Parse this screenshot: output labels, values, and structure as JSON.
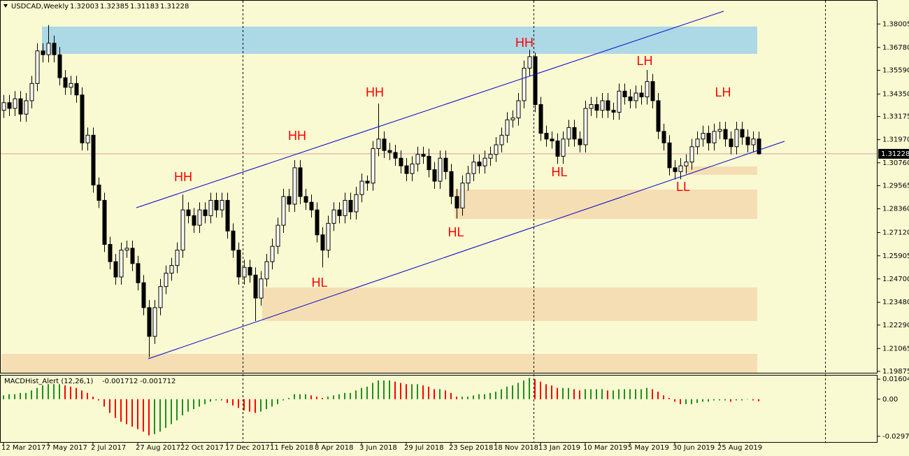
{
  "chart_data": [
    {
      "type": "candlestick",
      "title": "USDCAD,Weekly",
      "categories": [
        "12 Mar 2017",
        null,
        null,
        null,
        null,
        null,
        null,
        null,
        "7 May 2017",
        null,
        null,
        null,
        null,
        null,
        null,
        null,
        "2 Jul 2017",
        null,
        null,
        null,
        null,
        null,
        null,
        null,
        "27 Aug 2017",
        null,
        null,
        null,
        null,
        null,
        null,
        null,
        "22 Oct 2017",
        null,
        null,
        null,
        null,
        null,
        null,
        null,
        "17 Dec 2017",
        null,
        null,
        null,
        null,
        null,
        null,
        null,
        "11 Feb 2018",
        null,
        null,
        null,
        null,
        null,
        null,
        null,
        "8 Apr 2018",
        null,
        null,
        null,
        null,
        null,
        null,
        null,
        "3 Jun 2018",
        null,
        null,
        null,
        null,
        null,
        null,
        null,
        "29 Jul 2018",
        null,
        null,
        null,
        null,
        null,
        null,
        null,
        "23 Sep 2018",
        null,
        null,
        null,
        null,
        null,
        null,
        null,
        "18 Nov 2018",
        null,
        null,
        null,
        null,
        null,
        null,
        null,
        "13 Jan 2019",
        null,
        null,
        null,
        null,
        null,
        null,
        null,
        "10 Mar 2019",
        null,
        null,
        null,
        null,
        null,
        null,
        null,
        "5 May 2019",
        null,
        null,
        null,
        null,
        null,
        null,
        null,
        "30 Jun 2019",
        null,
        null,
        null,
        null,
        null,
        null,
        null,
        "25 Aug 2019",
        null,
        null,
        null,
        null,
        null,
        null,
        null
      ],
      "open": [
        1.335,
        1.339,
        1.336,
        1.341,
        1.333,
        1.34,
        1.349,
        1.366,
        1.364,
        1.37,
        1.364,
        1.352,
        1.347,
        1.349,
        1.343,
        1.318,
        1.322,
        1.296,
        1.288,
        1.265,
        1.256,
        1.248,
        1.262,
        1.263,
        1.255,
        1.245,
        1.232,
        1.217,
        1.232,
        1.243,
        1.25,
        1.254,
        1.262,
        1.283,
        1.28,
        1.275,
        1.283,
        1.28,
        1.288,
        1.283,
        1.288,
        1.272,
        1.262,
        1.248,
        1.253,
        1.249,
        1.237,
        1.247,
        1.256,
        1.264,
        1.275,
        1.29,
        1.286,
        1.305,
        1.29,
        1.287,
        1.283,
        1.27,
        1.262,
        1.276,
        1.283,
        1.28,
        1.288,
        1.282,
        1.291,
        1.298,
        1.297,
        1.315,
        1.32,
        1.314,
        1.313,
        1.31,
        1.306,
        1.302,
        1.307,
        1.312,
        1.311,
        1.304,
        1.298,
        1.31,
        1.303,
        1.29,
        1.284,
        1.297,
        1.302,
        1.308,
        1.306,
        1.31,
        1.312,
        1.317,
        1.322,
        1.33,
        1.331,
        1.34,
        1.357,
        1.363,
        1.338,
        1.323,
        1.32,
        1.319,
        1.311,
        1.32,
        1.326,
        1.32,
        1.317,
        1.336,
        1.338,
        1.335,
        1.34,
        1.335,
        1.334,
        1.345,
        1.342,
        1.34,
        1.344,
        1.342,
        1.35,
        1.34,
        1.324,
        1.318,
        1.305,
        1.303,
        1.306,
        1.308,
        1.316,
        1.32,
        1.323,
        1.318,
        1.324,
        1.325,
        1.32,
        1.316,
        1.325,
        1.321,
        1.317,
        1.32003
      ],
      "high": [
        1.343,
        1.343,
        1.345,
        1.345,
        1.344,
        1.353,
        1.37,
        1.37,
        1.3795,
        1.374,
        1.368,
        1.356,
        1.353,
        1.353,
        1.347,
        1.326,
        1.326,
        1.3,
        1.292,
        1.269,
        1.26,
        1.266,
        1.267,
        1.267,
        1.259,
        1.249,
        1.236,
        1.236,
        1.247,
        1.254,
        1.258,
        1.266,
        1.291,
        1.287,
        1.284,
        1.287,
        1.287,
        1.292,
        1.292,
        1.292,
        1.292,
        1.276,
        1.266,
        1.257,
        1.257,
        1.253,
        1.251,
        1.26,
        1.268,
        1.279,
        1.294,
        1.294,
        1.309,
        1.309,
        1.294,
        1.291,
        1.287,
        1.274,
        1.28,
        1.287,
        1.287,
        1.292,
        1.292,
        1.295,
        1.302,
        1.301,
        1.319,
        1.3385,
        1.324,
        1.318,
        1.317,
        1.314,
        1.31,
        1.311,
        1.316,
        1.316,
        1.315,
        1.308,
        1.314,
        1.314,
        1.307,
        1.294,
        1.301,
        1.306,
        1.312,
        1.312,
        1.314,
        1.316,
        1.321,
        1.326,
        1.334,
        1.335,
        1.344,
        1.361,
        1.3665,
        1.365,
        1.342,
        1.327,
        1.324,
        1.323,
        1.324,
        1.33,
        1.33,
        1.324,
        1.34,
        1.342,
        1.342,
        1.344,
        1.344,
        1.339,
        1.349,
        1.349,
        1.346,
        1.348,
        1.348,
        1.356,
        1.354,
        1.344,
        1.328,
        1.322,
        1.309,
        1.31,
        1.312,
        1.32,
        1.324,
        1.327,
        1.327,
        1.328,
        1.329,
        1.329,
        1.324,
        1.329,
        1.329,
        1.325,
        1.324,
        1.32385
      ],
      "low": [
        1.331,
        1.332,
        1.332,
        1.329,
        1.329,
        1.336,
        1.345,
        1.36,
        1.36,
        1.36,
        1.348,
        1.343,
        1.343,
        1.339,
        1.314,
        1.314,
        1.292,
        1.284,
        1.261,
        1.252,
        1.244,
        1.244,
        1.258,
        1.251,
        1.241,
        1.228,
        1.2061,
        1.213,
        1.228,
        1.239,
        1.246,
        1.25,
        1.258,
        1.276,
        1.271,
        1.271,
        1.276,
        1.276,
        1.279,
        1.279,
        1.268,
        1.258,
        1.244,
        1.244,
        1.245,
        1.225,
        1.233,
        1.243,
        1.252,
        1.26,
        1.271,
        1.282,
        1.282,
        1.286,
        1.283,
        1.279,
        1.266,
        1.253,
        1.258,
        1.272,
        1.276,
        1.276,
        1.278,
        1.278,
        1.287,
        1.293,
        1.293,
        1.311,
        1.31,
        1.309,
        1.306,
        1.302,
        1.298,
        1.298,
        1.303,
        1.307,
        1.3,
        1.294,
        1.294,
        1.299,
        1.286,
        1.2785,
        1.28,
        1.293,
        1.298,
        1.302,
        1.302,
        1.306,
        1.308,
        1.313,
        1.318,
        1.326,
        1.327,
        1.336,
        1.353,
        1.334,
        1.319,
        1.316,
        1.315,
        1.307,
        1.307,
        1.316,
        1.316,
        1.313,
        1.313,
        1.332,
        1.331,
        1.331,
        1.331,
        1.33,
        1.33,
        1.338,
        1.336,
        1.336,
        1.338,
        1.338,
        1.336,
        1.32,
        1.314,
        1.301,
        1.299,
        1.299,
        1.302,
        1.304,
        1.312,
        1.316,
        1.314,
        1.314,
        1.32,
        1.316,
        1.312,
        1.312,
        1.317,
        1.313,
        1.313,
        1.31183
      ],
      "close": [
        1.339,
        1.336,
        1.341,
        1.333,
        1.34,
        1.349,
        1.366,
        1.364,
        1.37,
        1.364,
        1.352,
        1.347,
        1.349,
        1.343,
        1.318,
        1.322,
        1.296,
        1.288,
        1.265,
        1.256,
        1.248,
        1.262,
        1.263,
        1.255,
        1.245,
        1.232,
        1.217,
        1.232,
        1.243,
        1.25,
        1.254,
        1.262,
        1.283,
        1.28,
        1.275,
        1.283,
        1.28,
        1.288,
        1.283,
        1.288,
        1.272,
        1.262,
        1.248,
        1.253,
        1.249,
        1.237,
        1.247,
        1.256,
        1.264,
        1.275,
        1.29,
        1.286,
        1.305,
        1.29,
        1.287,
        1.283,
        1.27,
        1.262,
        1.276,
        1.283,
        1.28,
        1.288,
        1.282,
        1.291,
        1.298,
        1.297,
        1.315,
        1.32,
        1.314,
        1.313,
        1.31,
        1.306,
        1.302,
        1.307,
        1.312,
        1.311,
        1.304,
        1.298,
        1.31,
        1.303,
        1.29,
        1.284,
        1.297,
        1.302,
        1.308,
        1.306,
        1.31,
        1.312,
        1.317,
        1.322,
        1.33,
        1.331,
        1.34,
        1.357,
        1.363,
        1.338,
        1.323,
        1.32,
        1.319,
        1.311,
        1.32,
        1.326,
        1.32,
        1.317,
        1.336,
        1.338,
        1.335,
        1.34,
        1.335,
        1.334,
        1.345,
        1.342,
        1.34,
        1.344,
        1.342,
        1.35,
        1.34,
        1.324,
        1.318,
        1.305,
        1.303,
        1.306,
        1.308,
        1.316,
        1.32,
        1.323,
        1.318,
        1.324,
        1.325,
        1.32,
        1.316,
        1.325,
        1.321,
        1.317,
        1.32003,
        1.31228
      ],
      "up_color": "#ffffff",
      "down_color": "#000000",
      "ylim": [
        1.198,
        1.3922
      ],
      "yticks": [
        1.38005,
        {
          "value": 1.3678,
          "label": "1.36780"
        },
        {
          "value": 1.3559,
          "label": "1.35590"
        },
        {
          "value": 1.3435,
          "label": "1.34350"
        },
        1.33175,
        {
          "value": 1.3197,
          "label": "1.31970"
        },
        {
          "value": 1.3076,
          "label": "1.30760"
        },
        1.29565,
        {
          "value": 1.2836,
          "label": "1.28360"
        },
        {
          "value": 1.2712,
          "label": "1.27120"
        },
        1.25905,
        {
          "value": 1.247,
          "label": "1.24700"
        },
        {
          "value": 1.2348,
          "label": "1.23480"
        },
        {
          "value": 1.2229,
          "label": "1.22290"
        },
        1.21065,
        1.19875
      ],
      "annotations": [
        "HH",
        "HH",
        "HH",
        "HH",
        "LH",
        "LH",
        "HL",
        "HL",
        "HL",
        "LL"
      ]
    },
    {
      "type": "bar",
      "title": "MACDHist_Alert (12,26,1)",
      "values": [
        0.003,
        0.004,
        0.004,
        0.005,
        0.005,
        0.007,
        0.009,
        0.011,
        0.012,
        0.012,
        0.012,
        0.011,
        0.01,
        0.009,
        0.007,
        0.005,
        0.002,
        -0.001,
        -0.006,
        -0.011,
        -0.015,
        -0.018,
        -0.02,
        -0.022,
        -0.024,
        -0.026,
        -0.029,
        -0.028,
        -0.026,
        -0.023,
        -0.02,
        -0.017,
        -0.013,
        -0.01,
        -0.008,
        -0.006,
        -0.004,
        -0.002,
        -0.001,
        -0.001,
        -0.003,
        -0.005,
        -0.007,
        -0.009,
        -0.01,
        -0.011,
        -0.01,
        -0.008,
        -0.006,
        -0.004,
        -0.001,
        0.001,
        0.004,
        0.004,
        0.004,
        0.003,
        0.002,
        0.001,
        0.002,
        0.003,
        0.004,
        0.005,
        0.005,
        0.007,
        0.009,
        0.01,
        0.013,
        0.015,
        0.015,
        0.015,
        0.014,
        0.013,
        0.012,
        0.012,
        0.012,
        0.011,
        0.01,
        0.008,
        0.008,
        0.007,
        0.005,
        0.002,
        0.002,
        0.002,
        0.003,
        0.004,
        0.004,
        0.005,
        0.006,
        0.008,
        0.01,
        0.011,
        0.013,
        0.015,
        0.017,
        0.016,
        0.014,
        0.012,
        0.011,
        0.009,
        0.009,
        0.009,
        0.008,
        0.007,
        0.008,
        0.008,
        0.008,
        0.008,
        0.007,
        0.007,
        0.008,
        0.008,
        0.008,
        0.008,
        0.008,
        0.009,
        0.008,
        0.006,
        0.003,
        0.001,
        -0.002,
        -0.004,
        -0.004,
        -0.004,
        -0.003,
        -0.002,
        -0.002,
        -0.001,
        -0.001,
        -0.001,
        -0.002,
        -0.001,
        -0.001,
        0.0,
        -0.001,
        -0.001712
      ],
      "up_color": "#1f8f1f",
      "down_color": "#ff0000",
      "ylim": [
        -0.0343,
        0.0189
      ],
      "yticks": [
        0.016041,
        {
          "value": 0,
          "label": "0.00"
        },
        -0.029733
      ]
    }
  ]
}
